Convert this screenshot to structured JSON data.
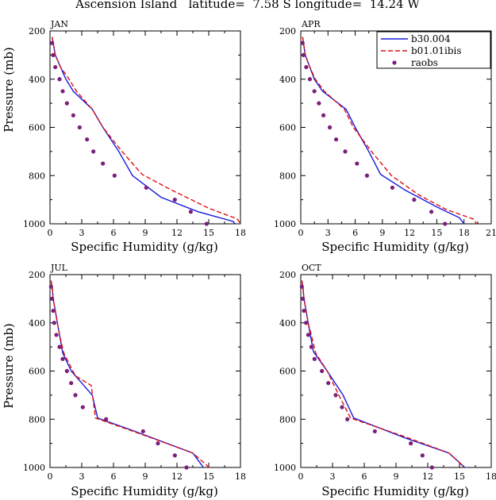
{
  "title": "Ascension Island   latitude=  7.58 S longitude=  14.24 W",
  "ylabel": "Pressure (mb)",
  "xlabel": "Specific Humidity (g/kg)",
  "legend": {
    "placement": "top-right of APR panel",
    "entries": [
      {
        "name": "b30.004",
        "color": "#1a1adb",
        "style": "solid"
      },
      {
        "name": "b01.01ibis",
        "color": "#e01010",
        "style": "dashed"
      },
      {
        "name": "raobs",
        "color": "#7a1f7a",
        "style": "marker"
      }
    ]
  },
  "chart_data": [
    {
      "type": "line",
      "panel": "JAN",
      "xlabel": "Specific Humidity (g/kg)",
      "ylabel": "Pressure (mb)",
      "xlim": [
        0,
        18
      ],
      "ylim": [
        1000,
        200
      ],
      "y_inverted": true,
      "xticks": [
        0,
        3,
        6,
        9,
        12,
        15,
        18
      ],
      "yticks": [
        200,
        400,
        600,
        800,
        1000
      ],
      "series": [
        {
          "name": "b30.004",
          "points": [
            [
              0.2,
              225
            ],
            [
              0.3,
              250
            ],
            [
              0.5,
              300
            ],
            [
              1.0,
              350
            ],
            [
              1.5,
              400
            ],
            [
              2.2,
              450
            ],
            [
              4.0,
              525
            ],
            [
              5.0,
              600
            ],
            [
              6.5,
              700
            ],
            [
              7.8,
              800
            ],
            [
              10.5,
              890
            ],
            [
              14.0,
              950
            ],
            [
              17.3,
              990
            ],
            [
              17.5,
              1000
            ]
          ]
        },
        {
          "name": "b01.01ibis",
          "points": [
            [
              0.2,
              225
            ],
            [
              0.3,
              250
            ],
            [
              0.5,
              300
            ],
            [
              1.0,
              350
            ],
            [
              1.8,
              400
            ],
            [
              2.5,
              450
            ],
            [
              4.0,
              525
            ],
            [
              5.0,
              600
            ],
            [
              6.8,
              700
            ],
            [
              8.7,
              795
            ],
            [
              11.5,
              860
            ],
            [
              15.0,
              935
            ],
            [
              17.7,
              980
            ],
            [
              18.0,
              1000
            ]
          ]
        },
        {
          "name": "raobs",
          "points": [
            [
              0.2,
              250
            ],
            [
              0.3,
              300
            ],
            [
              0.5,
              350
            ],
            [
              0.9,
              400
            ],
            [
              1.2,
              450
            ],
            [
              1.6,
              500
            ],
            [
              2.2,
              550
            ],
            [
              2.8,
              600
            ],
            [
              3.5,
              650
            ],
            [
              4.1,
              700
            ],
            [
              5.0,
              750
            ],
            [
              6.1,
              800
            ],
            [
              9.1,
              850
            ],
            [
              11.8,
              900
            ],
            [
              13.3,
              950
            ],
            [
              14.8,
              1000
            ]
          ]
        }
      ]
    },
    {
      "type": "line",
      "panel": "APR",
      "xlabel": "Specific Humidity (g/kg)",
      "ylabel": "Pressure (mb)",
      "xlim": [
        0,
        21
      ],
      "ylim": [
        1000,
        200
      ],
      "y_inverted": true,
      "xticks": [
        0,
        3,
        6,
        9,
        12,
        15,
        18,
        21
      ],
      "yticks": [
        200,
        400,
        600,
        800,
        1000
      ],
      "series": [
        {
          "name": "b30.004",
          "points": [
            [
              0.2,
              225
            ],
            [
              0.3,
              250
            ],
            [
              0.5,
              300
            ],
            [
              1.0,
              350
            ],
            [
              1.5,
              400
            ],
            [
              2.4,
              450
            ],
            [
              5.0,
              525
            ],
            [
              6.0,
              600
            ],
            [
              7.5,
              700
            ],
            [
              8.8,
              795
            ],
            [
              11.5,
              860
            ],
            [
              15.0,
              930
            ],
            [
              17.5,
              975
            ],
            [
              18.0,
              1000
            ]
          ]
        },
        {
          "name": "b01.01ibis",
          "points": [
            [
              0.2,
              225
            ],
            [
              0.3,
              250
            ],
            [
              0.5,
              300
            ],
            [
              1.0,
              350
            ],
            [
              1.6,
              400
            ],
            [
              2.6,
              450
            ],
            [
              4.8,
              525
            ],
            [
              5.8,
              600
            ],
            [
              7.8,
              700
            ],
            [
              10.0,
              800
            ],
            [
              13.0,
              880
            ],
            [
              16.0,
              940
            ],
            [
              19.0,
              980
            ],
            [
              19.4,
              1000
            ]
          ]
        },
        {
          "name": "raobs",
          "points": [
            [
              0.2,
              250
            ],
            [
              0.3,
              300
            ],
            [
              0.6,
              350
            ],
            [
              1.0,
              400
            ],
            [
              1.5,
              450
            ],
            [
              2.0,
              500
            ],
            [
              2.5,
              550
            ],
            [
              3.2,
              600
            ],
            [
              3.9,
              650
            ],
            [
              4.9,
              700
            ],
            [
              6.2,
              750
            ],
            [
              7.3,
              800
            ],
            [
              10.1,
              850
            ],
            [
              12.5,
              900
            ],
            [
              14.4,
              950
            ],
            [
              15.9,
              1000
            ]
          ]
        }
      ]
    },
    {
      "type": "line",
      "panel": "JUL",
      "xlabel": "Specific Humidity (g/kg)",
      "ylabel": "Pressure (mb)",
      "xlim": [
        0,
        18
      ],
      "ylim": [
        1000,
        200
      ],
      "y_inverted": true,
      "xticks": [
        0,
        3,
        6,
        9,
        12,
        15,
        18
      ],
      "yticks": [
        200,
        400,
        600,
        800,
        1000
      ],
      "series": [
        {
          "name": "b30.004",
          "points": [
            [
              0.1,
              225
            ],
            [
              0.2,
              250
            ],
            [
              0.3,
              300
            ],
            [
              0.5,
              350
            ],
            [
              0.7,
              400
            ],
            [
              0.9,
              450
            ],
            [
              1.2,
              525
            ],
            [
              2.0,
              600
            ],
            [
              4.0,
              700
            ],
            [
              4.5,
              795
            ],
            [
              8.0,
              850
            ],
            [
              13.5,
              940
            ],
            [
              14.5,
              1000
            ]
          ]
        },
        {
          "name": "b01.01ibis",
          "points": [
            [
              0.1,
              225
            ],
            [
              0.2,
              250
            ],
            [
              0.3,
              300
            ],
            [
              0.5,
              350
            ],
            [
              0.7,
              400
            ],
            [
              0.9,
              450
            ],
            [
              1.3,
              525
            ],
            [
              2.4,
              620
            ],
            [
              3.9,
              660
            ],
            [
              4.3,
              795
            ],
            [
              8.5,
              860
            ],
            [
              13.5,
              940
            ],
            [
              14.8,
              990
            ],
            [
              15.0,
              1000
            ]
          ]
        },
        {
          "name": "raobs",
          "points": [
            [
              0.1,
              250
            ],
            [
              0.2,
              300
            ],
            [
              0.3,
              350
            ],
            [
              0.4,
              400
            ],
            [
              0.6,
              450
            ],
            [
              0.9,
              500
            ],
            [
              1.2,
              550
            ],
            [
              1.6,
              600
            ],
            [
              2.0,
              650
            ],
            [
              2.4,
              700
            ],
            [
              3.1,
              750
            ],
            [
              5.3,
              800
            ],
            [
              8.8,
              850
            ],
            [
              10.2,
              900
            ],
            [
              11.8,
              950
            ],
            [
              12.9,
              1000
            ]
          ]
        }
      ]
    },
    {
      "type": "line",
      "panel": "OCT",
      "xlabel": "Specific Humidity (g/kg)",
      "ylabel": "Pressure (mb)",
      "xlim": [
        0,
        18
      ],
      "ylim": [
        1000,
        200
      ],
      "y_inverted": true,
      "xticks": [
        0,
        3,
        6,
        9,
        12,
        15,
        18
      ],
      "yticks": [
        200,
        400,
        600,
        800,
        1000
      ],
      "series": [
        {
          "name": "b30.004",
          "points": [
            [
              0.1,
              225
            ],
            [
              0.2,
              250
            ],
            [
              0.3,
              300
            ],
            [
              0.5,
              350
            ],
            [
              0.7,
              400
            ],
            [
              0.9,
              450
            ],
            [
              1.2,
              520
            ],
            [
              2.5,
              600
            ],
            [
              4.0,
              700
            ],
            [
              5.0,
              795
            ],
            [
              10.0,
              880
            ],
            [
              14.0,
              940
            ],
            [
              15.5,
              1000
            ]
          ]
        },
        {
          "name": "b01.01ibis",
          "points": [
            [
              0.1,
              225
            ],
            [
              0.2,
              250
            ],
            [
              0.3,
              300
            ],
            [
              0.5,
              350
            ],
            [
              0.7,
              400
            ],
            [
              1.0,
              450
            ],
            [
              1.4,
              525
            ],
            [
              2.5,
              600
            ],
            [
              3.6,
              700
            ],
            [
              4.7,
              795
            ],
            [
              10.0,
              875
            ],
            [
              14.0,
              940
            ],
            [
              15.0,
              980
            ],
            [
              15.4,
              1000
            ]
          ]
        },
        {
          "name": "raobs",
          "points": [
            [
              0.1,
              250
            ],
            [
              0.2,
              300
            ],
            [
              0.3,
              350
            ],
            [
              0.5,
              400
            ],
            [
              0.7,
              450
            ],
            [
              1.0,
              500
            ],
            [
              1.3,
              550
            ],
            [
              2.0,
              600
            ],
            [
              2.6,
              650
            ],
            [
              3.3,
              700
            ],
            [
              3.9,
              750
            ],
            [
              4.4,
              800
            ],
            [
              7.0,
              850
            ],
            [
              10.4,
              900
            ],
            [
              11.5,
              950
            ],
            [
              12.4,
              1000
            ]
          ]
        }
      ]
    }
  ]
}
